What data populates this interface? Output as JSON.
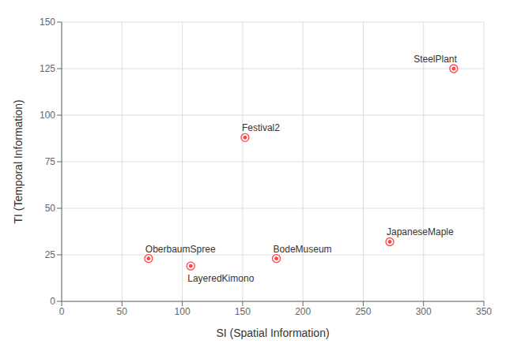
{
  "chart_data": {
    "type": "scatter",
    "xlabel": "SI (Spatial Information)",
    "ylabel": "TI (Temporal Information)",
    "x": [
      325,
      152,
      272,
      72,
      107,
      178
    ],
    "values": [
      125,
      88,
      32,
      23,
      19,
      23
    ],
    "annotations": [
      "SteelPlant",
      "Festival2",
      "JapaneseMaple",
      "OberbaumSpree",
      "LayeredKimono",
      "BodeMuseum"
    ],
    "color": "#FF4444",
    "xlim": [
      0,
      350
    ],
    "ylim": [
      0,
      150
    ],
    "xticks": [
      0,
      50,
      100,
      150,
      200,
      250,
      300,
      350
    ],
    "yticks": [
      0,
      25,
      50,
      75,
      100,
      125,
      150
    ],
    "grid": true
  }
}
